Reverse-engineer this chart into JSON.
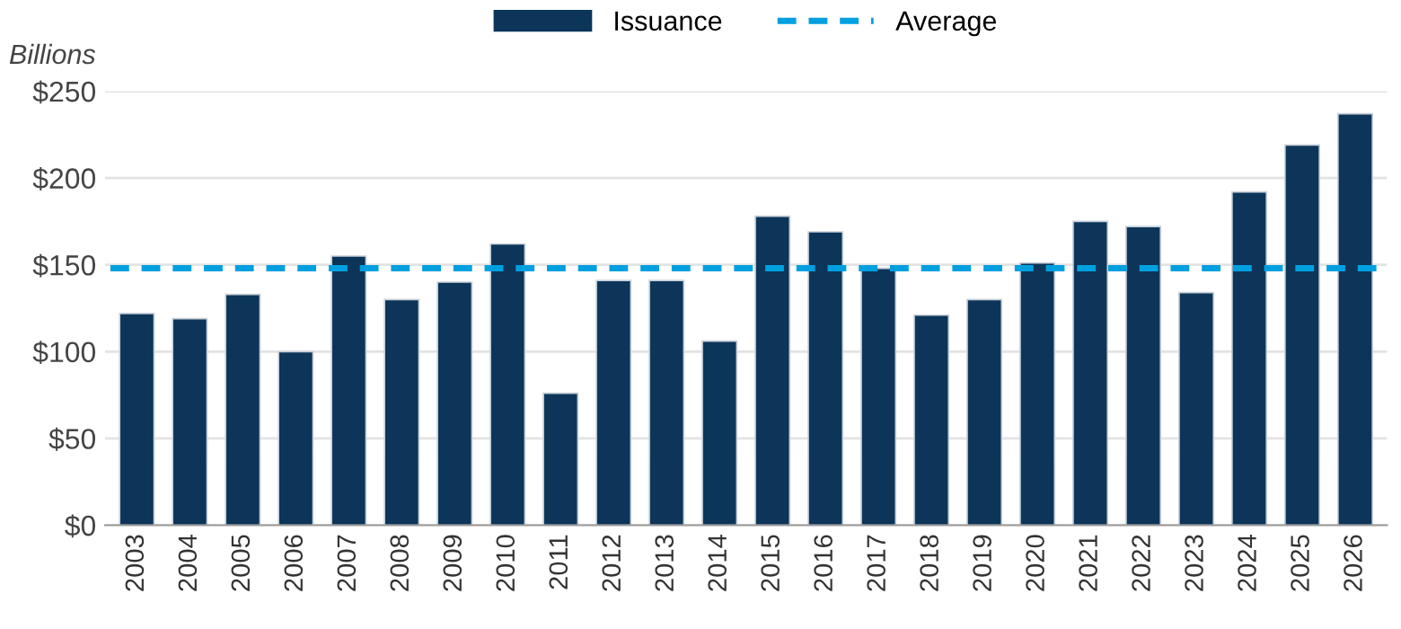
{
  "chart_data": {
    "type": "bar",
    "ylabel": "Billions",
    "categories": [
      "2003",
      "2004",
      "2005",
      "2006",
      "2007",
      "2008",
      "2009",
      "2010",
      "2011",
      "2012",
      "2013",
      "2014",
      "2015",
      "2016",
      "2017",
      "2018",
      "2019",
      "2020",
      "2021",
      "2022",
      "2023",
      "2024",
      "2025",
      "2026"
    ],
    "series": [
      {
        "name": "Issuance",
        "color": "#0c3559",
        "values": [
          122,
          119,
          133,
          100,
          155,
          130,
          140,
          162,
          76,
          141,
          141,
          106,
          178,
          169,
          148,
          121,
          130,
          151,
          175,
          172,
          134,
          192,
          219,
          237
        ]
      }
    ],
    "ref_lines": [
      {
        "axis": "y",
        "value": 148,
        "label": "Average",
        "color": "#00a0e0",
        "line_style": "dashed"
      }
    ],
    "ylim": [
      0,
      250
    ],
    "yticks": [
      {
        "value": 0,
        "label": "$0"
      },
      {
        "value": 50,
        "label": "$50"
      },
      {
        "value": 100,
        "label": "$100"
      },
      {
        "value": 150,
        "label": "$150"
      },
      {
        "value": 200,
        "label": "$200"
      },
      {
        "value": 250,
        "label": "$250"
      }
    ],
    "grid": "y",
    "legend": "top"
  }
}
